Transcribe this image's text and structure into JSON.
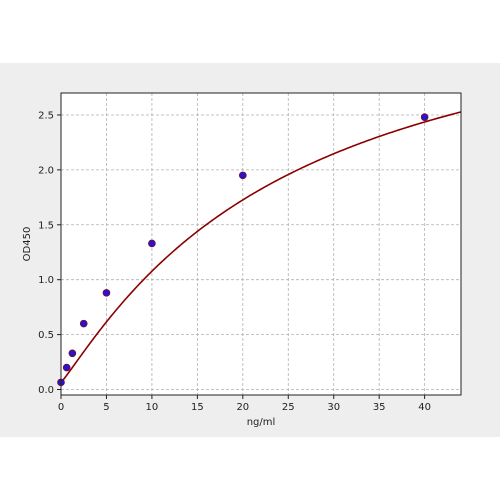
{
  "chart_data": {
    "type": "scatter",
    "title": "",
    "xlabel": "ng/ml",
    "ylabel": "OD450",
    "xlim": [
      0,
      44
    ],
    "ylim": [
      -0.05,
      2.7
    ],
    "xticks": [
      0,
      5,
      10,
      15,
      20,
      25,
      30,
      35,
      40
    ],
    "yticks": [
      0.0,
      0.5,
      1.0,
      1.5,
      2.0,
      2.5
    ],
    "xtick_labels": [
      "0",
      "5",
      "10",
      "15",
      "20",
      "25",
      "30",
      "35",
      "40"
    ],
    "ytick_labels": [
      "0.0",
      "0.5",
      "1.0",
      "1.5",
      "2.0",
      "2.5"
    ],
    "grid": true,
    "points": {
      "x": [
        0,
        0.625,
        1.25,
        2.5,
        5,
        10,
        20,
        40
      ],
      "y": [
        0.065,
        0.2,
        0.33,
        0.6,
        0.88,
        1.33,
        1.95,
        2.48
      ]
    },
    "fit_curve": {
      "model": "4PL",
      "a": 0.065,
      "b": 1.1,
      "c": 25,
      "d": 3.85
    },
    "colors": {
      "background": "#eeeeee",
      "plot_background": "#ffffff",
      "grid": "#b0b0b0",
      "curve": "#8b0000",
      "marker": "#2b14c8",
      "axis": "#222222"
    }
  }
}
